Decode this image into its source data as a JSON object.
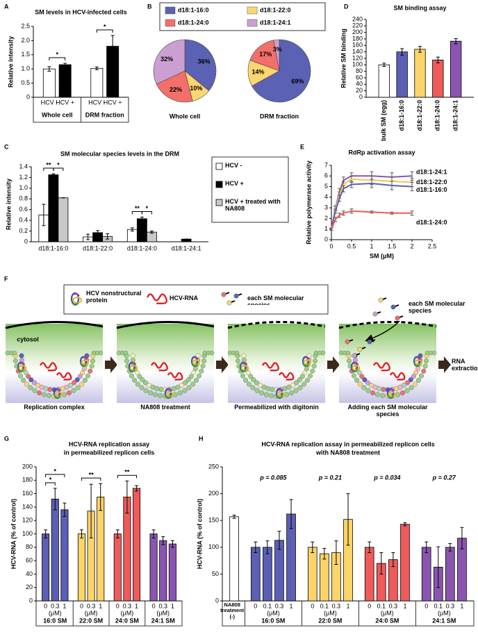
{
  "chart_data": [
    {
      "panel": "A",
      "type": "bar",
      "title": "SM levels in HCV-infected cells",
      "ylabel": "Relative intensity",
      "ylim": [
        0,
        2.5
      ],
      "yticks": [
        0,
        0.5,
        {
          "value": 1,
          "label": "1.0"
        },
        1.5,
        {
          "value": 2,
          "label": "2.0"
        },
        2.5
      ],
      "groups": [
        {
          "name": "Whole cell",
          "categories": [
            "HCV -",
            "HCV +"
          ],
          "values": [
            1.0,
            1.15
          ],
          "errors": [
            0.08,
            0.05
          ],
          "colors": [
            "#ffffff",
            "#000000"
          ]
        },
        {
          "name": "DRM fraction",
          "categories": [
            "HCV -",
            "HCV +"
          ],
          "values": [
            1.02,
            1.8
          ],
          "errors": [
            0.05,
            0.38
          ],
          "colors": [
            "#ffffff",
            "#000000"
          ]
        }
      ],
      "brackets": [
        {
          "label": "*",
          "group": 0,
          "from": 0,
          "to": 1
        },
        {
          "label": "*",
          "group": 1,
          "from": 0,
          "to": 1
        }
      ]
    },
    {
      "panel": "B",
      "type": "pie",
      "categories": [
        "d18:1-16:0",
        "d18:1-22:0",
        "d18:1-24:0",
        "d18:1-24:1"
      ],
      "colors": [
        "#5b62b3",
        "#fbd671",
        "#f26f6a",
        "#cc9fd2"
      ],
      "pies": [
        {
          "title": "Whole cell",
          "values": [
            36,
            10,
            22,
            32
          ],
          "value_labels": [
            "36%",
            "10%",
            "22%",
            "32%"
          ]
        },
        {
          "title": "DRM fraction",
          "values": [
            69,
            14,
            17,
            3
          ],
          "value_labels": [
            "69%",
            "14%",
            "17%",
            "3%"
          ]
        }
      ]
    },
    {
      "panel": "D",
      "type": "bar",
      "title": "SM binding assay",
      "ylabel": "Relative SM binding",
      "ylim": [
        0,
        240
      ],
      "yticks": [
        0,
        20,
        40,
        60,
        80,
        100,
        120,
        140,
        160,
        180,
        200,
        220,
        240
      ],
      "groups": [
        {
          "categories": [
            "bulk SM (egg)",
            "d18:1-16:0",
            "d18:1-22:0",
            "d18:1-24:0",
            "d18:1-24:1"
          ],
          "values": [
            100,
            140,
            148,
            115,
            173
          ],
          "errors": [
            5,
            10,
            9,
            9,
            8
          ],
          "colors": [
            "#ffffff",
            "#5b5fb5",
            "#fdd468",
            "#ef5a5a",
            "#8a55b0"
          ]
        }
      ]
    },
    {
      "panel": "C",
      "type": "grouped-bar",
      "title": "SM molecular species levels in the DRM",
      "ylabel": "Relative intensity",
      "ylim": [
        0,
        1.4
      ],
      "yticks": [
        0,
        0.2,
        0.4,
        0.6,
        0.8,
        {
          "value": 1,
          "label": "1.0"
        },
        1.2,
        1.4
      ],
      "categories": [
        "d18:1-16:0",
        "d18:1-22:0",
        "d18:1-24:0",
        "d18:1-24:1"
      ],
      "series": [
        {
          "name": "HCV -",
          "color": "#ffffff",
          "values": [
            0.5,
            0.09,
            0.23,
            0
          ],
          "errors": [
            0.2,
            0.05,
            0.03,
            0
          ]
        },
        {
          "name": "HCV +",
          "color": "#000000",
          "values": [
            1.25,
            0.17,
            0.43,
            0.05
          ],
          "errors": [
            0.02,
            0.04,
            0.03,
            0
          ]
        },
        {
          "name": "HCV + treated with NA808",
          "color": "#c8c8c8",
          "values": [
            0.82,
            0.1,
            0.18,
            0
          ],
          "errors": [
            0,
            0.05,
            0.02,
            0
          ]
        }
      ],
      "brackets": [
        {
          "label": "**",
          "category": 0,
          "from": 0,
          "to": 1
        },
        {
          "label": "*",
          "category": 0,
          "from": 1,
          "to": 2
        },
        {
          "label": "**",
          "category": 2,
          "from": 0,
          "to": 1
        },
        {
          "label": "*",
          "category": 2,
          "from": 1,
          "to": 2
        }
      ]
    },
    {
      "panel": "E",
      "type": "line",
      "title": "RdRp activation assay",
      "xlabel": "SM (μM)",
      "ylabel": "Relative polymerase activity",
      "x": [
        0,
        0.1,
        0.2,
        0.3,
        0.5,
        1,
        1.5,
        2
      ],
      "xlim": [
        0,
        2.5
      ],
      "xticks": [
        0,
        0.5,
        1,
        1.5,
        2,
        2.5
      ],
      "ylim": [
        0,
        7
      ],
      "yticks": [
        0,
        1,
        2,
        3,
        4,
        5,
        6,
        7
      ],
      "series": [
        {
          "name": "d18:1-24:1",
          "color": "#8a55b0",
          "values": [
            1,
            3.0,
            4.5,
            5.6,
            6.0,
            6.0,
            5.9,
            6.0
          ],
          "errors": [
            0.1,
            0.2,
            0.3,
            0.3,
            0.3,
            0.4,
            0.4,
            0.4
          ]
        },
        {
          "name": "d18:1-22:0",
          "color": "#f5c842",
          "values": [
            1,
            2.9,
            4.2,
            5.2,
            5.7,
            5.6,
            5.5,
            5.4
          ],
          "errors": [
            0.1,
            0.2,
            0.3,
            0.3,
            0.3,
            0.4,
            0.4,
            0.4
          ]
        },
        {
          "name": "d18:1-16:0",
          "color": "#5b5fb5",
          "values": [
            1,
            2.7,
            3.9,
            4.8,
            5.2,
            5.3,
            5.1,
            5.0
          ],
          "errors": [
            0.1,
            0.2,
            0.3,
            0.3,
            0.3,
            0.4,
            0.4,
            0.4
          ]
        },
        {
          "name": "d18:1-24:0",
          "color": "#ef5a5a",
          "values": [
            1,
            1.9,
            2.3,
            2.5,
            2.7,
            2.6,
            2.5,
            2.5
          ],
          "errors": [
            0.1,
            0.2,
            0.2,
            0.2,
            0.2,
            0.1,
            0.1,
            0.2
          ]
        }
      ]
    },
    {
      "panel": "G",
      "type": "bar",
      "title": [
        "HCV-RNA replication assay",
        "in permeabilized replicon cells"
      ],
      "ylabel": "HCV-RNA (% of control)",
      "ylim": [
        0,
        200
      ],
      "yticks": [
        0,
        20,
        40,
        60,
        80,
        100,
        120,
        140,
        160,
        180,
        200
      ],
      "groups": [
        {
          "name": "16:0 SM",
          "categories": [
            "0",
            "0.3",
            "1"
          ],
          "unit": "(μM)",
          "values": [
            100,
            152,
            136
          ],
          "errors": [
            6,
            16,
            10
          ],
          "color": "#5b5fb5"
        },
        {
          "name": "22:0 SM",
          "categories": [
            "0",
            "0.3",
            "1"
          ],
          "unit": "(μM)",
          "values": [
            100,
            134,
            155
          ],
          "errors": [
            6,
            40,
            20
          ],
          "color": "#fdd468"
        },
        {
          "name": "24:0 SM",
          "categories": [
            "0",
            "0.3",
            "1"
          ],
          "unit": "(μM)",
          "values": [
            100,
            155,
            168
          ],
          "errors": [
            6,
            24,
            4
          ],
          "color": "#ef5a5a"
        },
        {
          "name": "24:1 SM",
          "categories": [
            "0",
            "0.3",
            "1"
          ],
          "unit": "(μM)",
          "values": [
            100,
            90,
            85
          ],
          "errors": [
            6,
            6,
            5
          ],
          "color": "#8a55b0"
        }
      ],
      "brackets": [
        {
          "label": "*",
          "group": 0,
          "from": 0,
          "to": 1
        },
        {
          "label": "*",
          "group": 0,
          "from": 0,
          "to": 2
        },
        {
          "label": "**",
          "group": 1,
          "from": 0,
          "to": 2
        },
        {
          "label": "**",
          "group": 2,
          "from": 0,
          "to": 2
        }
      ]
    },
    {
      "panel": "H",
      "type": "bar",
      "title": [
        "HCV-RNA replication assay in permeabilized replicon cells",
        "with NA808 treatment"
      ],
      "ylabel": "HCV-RNA (% of control)",
      "ylim": [
        0,
        250
      ],
      "yticks": [
        0,
        50,
        100,
        150,
        200,
        250
      ],
      "groups": [
        {
          "name": "NA808 treatment (-)",
          "values": [
            157
          ],
          "errors": [
            3
          ],
          "color": "#ffffff"
        },
        {
          "name": "16:0 SM",
          "p": "p = 0.085",
          "categories": [
            "0",
            "0.1",
            "0.3",
            "1"
          ],
          "unit": "(μM)",
          "values": [
            100,
            100,
            113,
            162
          ],
          "errors": [
            10,
            12,
            17,
            27
          ],
          "color": "#5b5fb5"
        },
        {
          "name": "22:0 SM",
          "p": "p = 0.21",
          "categories": [
            "0",
            "0.1",
            "0.3",
            "1"
          ],
          "unit": "(μM)",
          "values": [
            100,
            88,
            90,
            152
          ],
          "errors": [
            10,
            10,
            22,
            48
          ],
          "color": "#fdd468"
        },
        {
          "name": "24:0 SM",
          "p": "p = 0.034",
          "categories": [
            "0",
            "0.1",
            "0.3",
            "1"
          ],
          "unit": "(μM)",
          "values": [
            100,
            70,
            77,
            143
          ],
          "errors": [
            10,
            20,
            13,
            3
          ],
          "color": "#ef5a5a"
        },
        {
          "name": "24:1 SM",
          "p": "p = 0.27",
          "categories": [
            "0",
            "0.1",
            "0.3",
            "1"
          ],
          "unit": "(μM)",
          "values": [
            100,
            63,
            100,
            117
          ],
          "errors": [
            10,
            38,
            7,
            20
          ],
          "color": "#8a55b0"
        }
      ]
    }
  ],
  "diagram": {
    "panel": "F",
    "legend": [
      "HCV nonstructural protein",
      "HCV-RNA",
      "each SM molecular species"
    ],
    "cytosol": "cytosol",
    "steps": [
      "Replication complex",
      "NA808 treatment",
      "Permeabilized with digitonin",
      "Adding each SM molecular species"
    ],
    "added": "each SM molecular species",
    "result": "RNA extraction"
  }
}
